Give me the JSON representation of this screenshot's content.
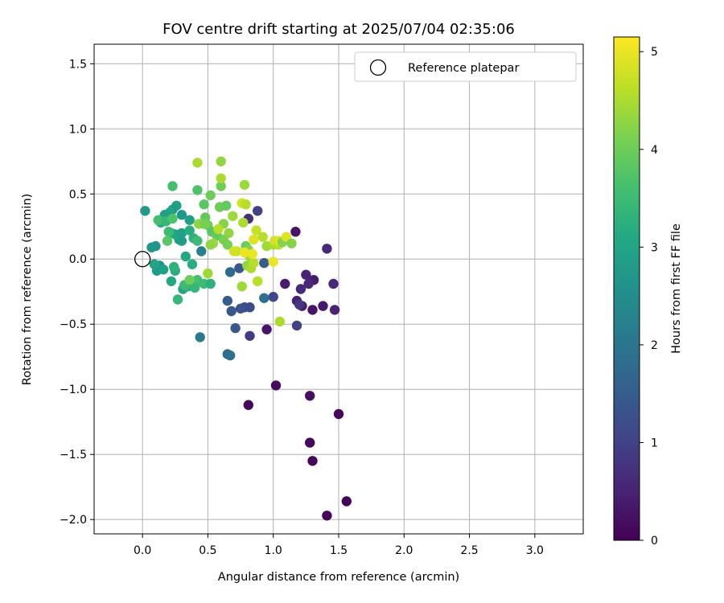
{
  "chart_data": {
    "type": "scatter",
    "title": "FOV centre drift starting at 2025/07/04 02:35:06",
    "xlabel": "Angular distance from reference (arcmin)",
    "ylabel": "Rotation from reference (arcmin)",
    "xlim": [
      -0.37,
      3.37
    ],
    "ylim": [
      -2.11,
      1.65
    ],
    "xticks": [
      "0.0",
      "0.5",
      "1.0",
      "1.5",
      "2.0",
      "2.5",
      "3.0"
    ],
    "yticks": [
      "−2.0",
      "−1.5",
      "−1.0",
      "−0.5",
      "0.0",
      "0.5",
      "1.0",
      "1.5"
    ],
    "grid": true,
    "legend": {
      "position": "top-right",
      "entries": [
        "Reference platepar"
      ]
    },
    "reference_point": {
      "x": 0.0,
      "y": 0.0
    },
    "colorbar": {
      "label": "Hours from first FF file",
      "range": [
        0,
        5.15
      ],
      "ticks": [
        "0",
        "1",
        "2",
        "3",
        "4",
        "5"
      ],
      "colormap": "viridis"
    },
    "series": [
      {
        "points": [
          [
            1.41,
            -1.97,
            0.05
          ],
          [
            1.56,
            -1.86,
            0.05
          ],
          [
            1.3,
            -1.55,
            0.1
          ],
          [
            1.28,
            -1.41,
            0.1
          ],
          [
            1.5,
            -1.19,
            0.1
          ],
          [
            0.81,
            -1.12,
            0.1
          ],
          [
            1.02,
            -0.97,
            0.15
          ],
          [
            1.28,
            -1.05,
            0.2
          ],
          [
            0.95,
            -0.54,
            0.3
          ],
          [
            1.3,
            -0.39,
            0.3
          ],
          [
            1.38,
            -0.36,
            0.35
          ],
          [
            1.22,
            -0.36,
            0.4
          ],
          [
            1.47,
            -0.39,
            0.5
          ],
          [
            1.31,
            -0.16,
            0.4
          ],
          [
            1.27,
            -0.19,
            0.6
          ],
          [
            1.25,
            -0.12,
            0.5
          ],
          [
            1.21,
            -0.23,
            0.6
          ],
          [
            1.46,
            -0.19,
            0.6
          ],
          [
            1.18,
            -0.32,
            0.5
          ],
          [
            1.09,
            -0.19,
            0.4
          ],
          [
            1.17,
            0.21,
            0.3
          ],
          [
            1.41,
            0.08,
            0.6
          ],
          [
            1.2,
            -0.35,
            0.8
          ],
          [
            1.18,
            -0.51,
            1.0
          ],
          [
            1.0,
            -0.29,
            1.1
          ],
          [
            0.82,
            -0.59,
            0.9
          ],
          [
            0.88,
            0.37,
            1.0
          ],
          [
            0.78,
            -0.37,
            1.2
          ],
          [
            0.71,
            -0.53,
            1.4
          ],
          [
            0.68,
            -0.4,
            1.4
          ],
          [
            0.65,
            -0.73,
            1.8
          ],
          [
            0.65,
            -0.32,
            1.5
          ],
          [
            0.75,
            -0.38,
            1.3
          ],
          [
            0.82,
            -0.37,
            1.2
          ],
          [
            0.93,
            -0.3,
            1.9
          ],
          [
            0.74,
            -0.07,
            1.4
          ],
          [
            0.67,
            -0.1,
            1.8
          ],
          [
            0.67,
            -0.74,
            1.9
          ],
          [
            0.44,
            -0.6,
            2.1
          ],
          [
            0.45,
            0.06,
            2.2
          ],
          [
            0.81,
            0.31,
            0.7
          ],
          [
            0.93,
            -0.03,
            1.5
          ],
          [
            0.02,
            0.37,
            2.8
          ],
          [
            0.1,
            0.1,
            2.6
          ],
          [
            0.07,
            0.09,
            2.7
          ],
          [
            0.11,
            -0.09,
            2.8
          ],
          [
            0.13,
            -0.05,
            2.6
          ],
          [
            0.16,
            -0.08,
            2.9
          ],
          [
            0.09,
            -0.04,
            3.0
          ],
          [
            0.22,
            -0.17,
            3.1
          ],
          [
            0.25,
            -0.09,
            3.2
          ],
          [
            0.24,
            -0.06,
            3.3
          ],
          [
            0.27,
            -0.31,
            3.4
          ],
          [
            0.31,
            -0.23,
            3.0
          ],
          [
            0.35,
            -0.21,
            3.3
          ],
          [
            0.32,
            -0.2,
            3.5
          ],
          [
            0.4,
            -0.2,
            3.2
          ],
          [
            0.42,
            -0.16,
            3.6
          ],
          [
            0.4,
            -0.22,
            3.4
          ],
          [
            0.47,
            -0.19,
            3.5
          ],
          [
            0.52,
            -0.19,
            3.3
          ],
          [
            0.33,
            0.02,
            3.1
          ],
          [
            0.38,
            -0.04,
            3.2
          ],
          [
            0.3,
            0.14,
            2.9
          ],
          [
            0.28,
            0.15,
            2.8
          ],
          [
            0.25,
            0.19,
            3.0
          ],
          [
            0.22,
            0.2,
            3.1
          ],
          [
            0.3,
            0.2,
            2.9
          ],
          [
            0.36,
            0.22,
            3.2
          ],
          [
            0.39,
            0.16,
            3.3
          ],
          [
            0.42,
            0.14,
            3.5
          ],
          [
            0.36,
            0.3,
            2.9
          ],
          [
            0.3,
            0.34,
            2.7
          ],
          [
            0.26,
            0.41,
            2.9
          ],
          [
            0.23,
            0.38,
            2.8
          ],
          [
            0.21,
            0.36,
            3.0
          ],
          [
            0.17,
            0.34,
            2.9
          ],
          [
            0.14,
            0.28,
            3.2
          ],
          [
            0.12,
            0.3,
            3.6
          ],
          [
            0.18,
            0.29,
            3.4
          ],
          [
            0.2,
            0.21,
            3.5
          ],
          [
            0.23,
            0.31,
            3.7
          ],
          [
            0.19,
            0.14,
            3.8
          ],
          [
            0.23,
            0.56,
            3.6
          ],
          [
            0.42,
            0.53,
            3.7
          ],
          [
            0.47,
            0.42,
            3.8
          ],
          [
            0.52,
            0.49,
            4.0
          ],
          [
            0.48,
            0.32,
            3.9
          ],
          [
            0.5,
            0.26,
            4.0
          ],
          [
            0.53,
            0.21,
            3.8
          ],
          [
            0.57,
            0.18,
            3.9
          ],
          [
            0.62,
            0.15,
            4.1
          ],
          [
            0.59,
            0.4,
            4.0
          ],
          [
            0.64,
            0.41,
            3.9
          ],
          [
            0.62,
            0.27,
            4.2
          ],
          [
            0.66,
            0.2,
            4.3
          ],
          [
            0.6,
            0.56,
            4.0
          ],
          [
            0.6,
            0.62,
            4.5
          ],
          [
            0.6,
            0.75,
            4.3
          ],
          [
            0.42,
            0.74,
            4.5
          ],
          [
            0.43,
            0.27,
            4.3
          ],
          [
            0.47,
            0.27,
            4.1
          ],
          [
            0.54,
            0.12,
            4.4
          ],
          [
            0.52,
            0.11,
            4.3
          ],
          [
            0.58,
            0.23,
            4.6
          ],
          [
            0.65,
            0.11,
            4.1
          ],
          [
            0.69,
            0.33,
            4.4
          ],
          [
            0.76,
            0.43,
            4.8
          ],
          [
            0.79,
            0.42,
            4.6
          ],
          [
            0.77,
            0.28,
            4.5
          ],
          [
            0.78,
            0.57,
            4.4
          ],
          [
            0.79,
            0.1,
            4.0
          ],
          [
            0.81,
            0.07,
            4.2
          ],
          [
            0.82,
            0.02,
            4.4
          ],
          [
            0.8,
            -0.05,
            4.3
          ],
          [
            0.83,
            -0.07,
            4.5
          ],
          [
            0.85,
            -0.03,
            4.6
          ],
          [
            0.76,
            -0.21,
            4.4
          ],
          [
            0.88,
            -0.17,
            4.6
          ],
          [
            0.72,
            0.06,
            4.7
          ],
          [
            0.7,
            0.06,
            4.8
          ],
          [
            0.78,
            0.05,
            5.0
          ],
          [
            0.84,
            0.04,
            5.0
          ],
          [
            0.85,
            0.15,
            4.9
          ],
          [
            0.87,
            0.22,
            4.7
          ],
          [
            0.92,
            0.17,
            4.6
          ],
          [
            0.95,
            0.1,
            4.4
          ],
          [
            1.0,
            0.11,
            4.5
          ],
          [
            1.01,
            0.14,
            4.8
          ],
          [
            1.04,
            0.11,
            4.6
          ],
          [
            1.04,
            0.14,
            4.9
          ],
          [
            1.07,
            0.13,
            4.2
          ],
          [
            1.1,
            0.17,
            4.9
          ],
          [
            1.14,
            0.12,
            4.2
          ],
          [
            1.0,
            -0.02,
            5.0
          ],
          [
            1.05,
            -0.48,
            4.5
          ],
          [
            0.5,
            -0.11,
            4.4
          ],
          [
            0.36,
            -0.16,
            4.0
          ]
        ]
      }
    ]
  }
}
